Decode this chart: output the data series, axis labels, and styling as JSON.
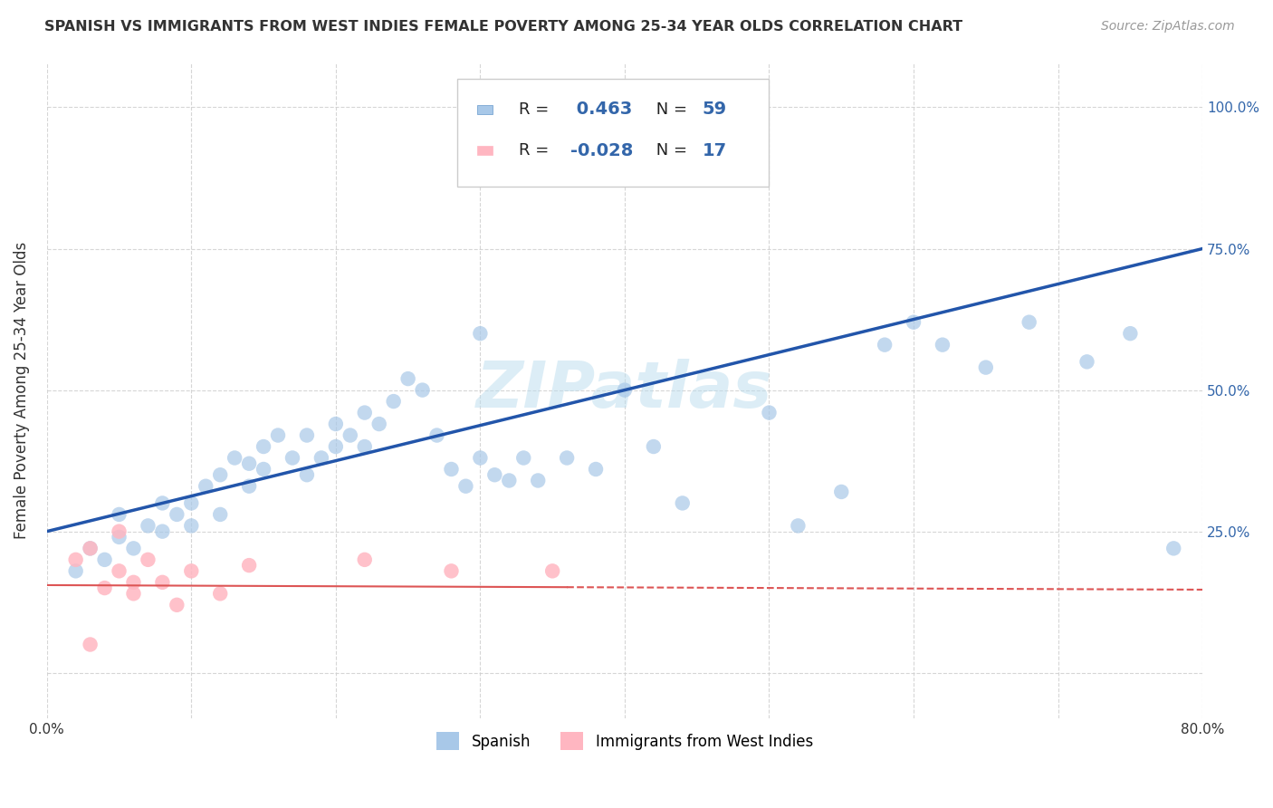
{
  "title": "SPANISH VS IMMIGRANTS FROM WEST INDIES FEMALE POVERTY AMONG 25-34 YEAR OLDS CORRELATION CHART",
  "source": "Source: ZipAtlas.com",
  "ylabel": "Female Poverty Among 25-34 Year Olds",
  "x_min": 0.0,
  "x_max": 0.8,
  "y_min": -0.08,
  "y_max": 1.08,
  "x_ticks": [
    0.0,
    0.1,
    0.2,
    0.3,
    0.4,
    0.5,
    0.6,
    0.7,
    0.8
  ],
  "y_ticks": [
    0.0,
    0.25,
    0.5,
    0.75,
    1.0
  ],
  "y_tick_labels_right": [
    "",
    "25.0%",
    "50.0%",
    "75.0%",
    "100.0%"
  ],
  "blue_scatter_x": [
    0.02,
    0.03,
    0.04,
    0.05,
    0.05,
    0.06,
    0.07,
    0.08,
    0.08,
    0.09,
    0.1,
    0.1,
    0.11,
    0.12,
    0.12,
    0.13,
    0.14,
    0.14,
    0.15,
    0.15,
    0.16,
    0.17,
    0.18,
    0.18,
    0.19,
    0.2,
    0.2,
    0.21,
    0.22,
    0.22,
    0.23,
    0.24,
    0.25,
    0.26,
    0.27,
    0.28,
    0.29,
    0.3,
    0.31,
    0.32,
    0.33,
    0.34,
    0.36,
    0.38,
    0.4,
    0.42,
    0.44,
    0.5,
    0.52,
    0.55,
    0.58,
    0.6,
    0.62,
    0.65,
    0.68,
    0.72,
    0.75,
    0.78,
    0.3
  ],
  "blue_scatter_y": [
    0.18,
    0.22,
    0.2,
    0.24,
    0.28,
    0.22,
    0.26,
    0.3,
    0.25,
    0.28,
    0.3,
    0.26,
    0.33,
    0.35,
    0.28,
    0.38,
    0.37,
    0.33,
    0.4,
    0.36,
    0.42,
    0.38,
    0.35,
    0.42,
    0.38,
    0.44,
    0.4,
    0.42,
    0.46,
    0.4,
    0.44,
    0.48,
    0.52,
    0.5,
    0.42,
    0.36,
    0.33,
    0.38,
    0.35,
    0.34,
    0.38,
    0.34,
    0.38,
    0.36,
    0.5,
    0.4,
    0.3,
    0.46,
    0.26,
    0.32,
    0.58,
    0.62,
    0.58,
    0.54,
    0.62,
    0.55,
    0.6,
    0.22,
    0.6
  ],
  "pink_scatter_x": [
    0.02,
    0.03,
    0.04,
    0.05,
    0.05,
    0.06,
    0.06,
    0.07,
    0.08,
    0.09,
    0.1,
    0.12,
    0.14,
    0.22,
    0.28,
    0.35,
    0.03
  ],
  "pink_scatter_y": [
    0.2,
    0.22,
    0.15,
    0.25,
    0.18,
    0.16,
    0.14,
    0.2,
    0.16,
    0.12,
    0.18,
    0.14,
    0.19,
    0.2,
    0.18,
    0.18,
    0.05
  ],
  "blue_R": 0.463,
  "blue_N": 59,
  "pink_R": -0.028,
  "pink_N": 17,
  "blue_color": "#A8C8E8",
  "blue_line_color": "#2255AA",
  "pink_color": "#FFB6C1",
  "pink_line_color": "#DD5555",
  "watermark": "ZIPatlas",
  "legend_label_blue": "Spanish",
  "legend_label_pink": "Immigrants from West Indies",
  "background_color": "#FFFFFF",
  "grid_color": "#CCCCCC"
}
